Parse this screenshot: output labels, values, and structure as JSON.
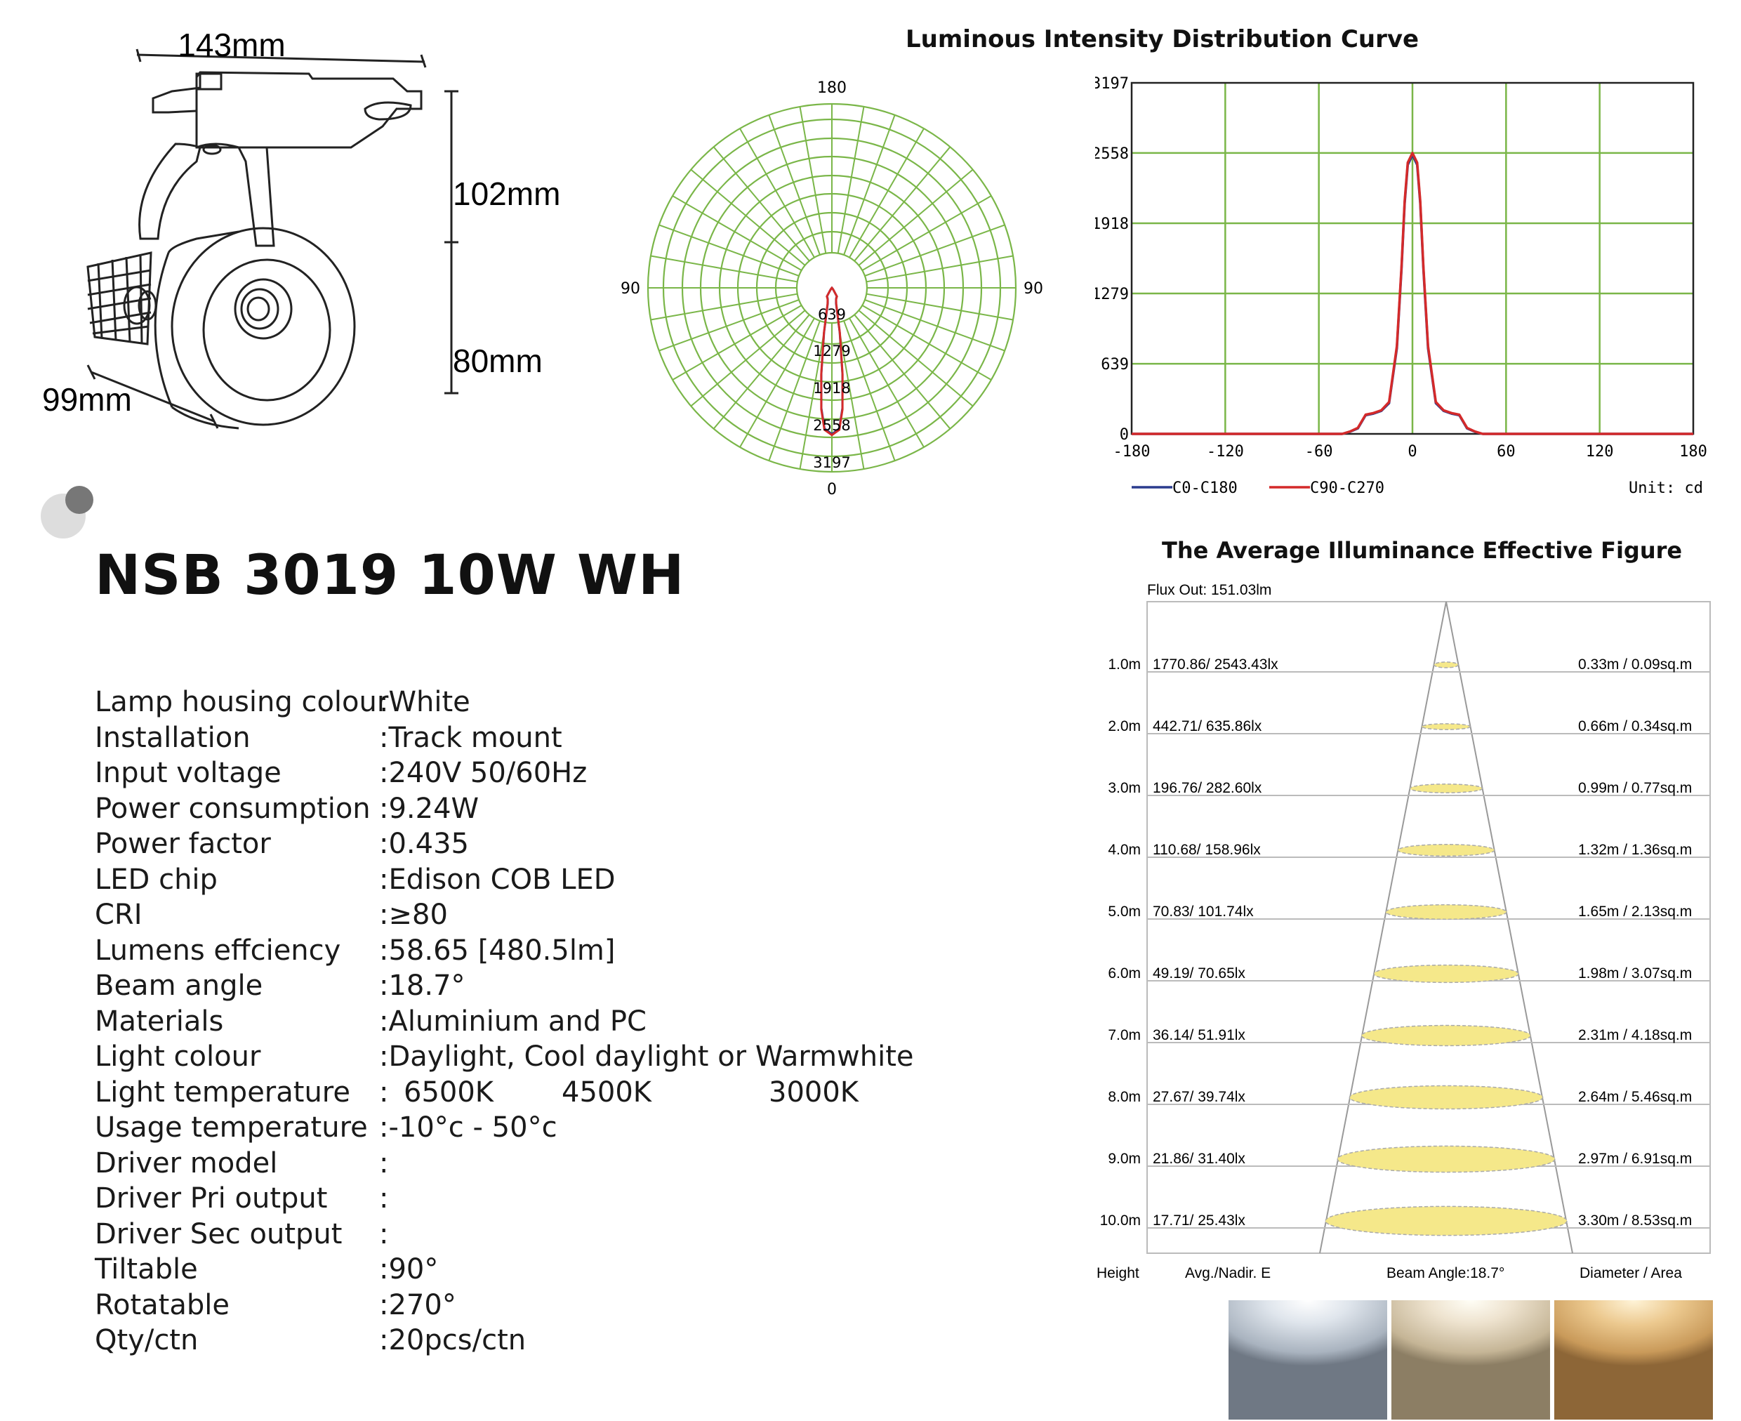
{
  "dimensions": {
    "width": "143mm",
    "height_total": "102mm",
    "height_head": "80mm",
    "depth": "99mm"
  },
  "section_titles": {
    "curve": "Luminous Intensity Distribution Curve",
    "illuminance": "The Average Illuminance Effective Figure"
  },
  "polar": {
    "top_label": "180",
    "left_label": "90",
    "right_label": "90",
    "bottom_label": "0",
    "ring_labels": [
      "639",
      "1279",
      "1918",
      "2558",
      "3197"
    ]
  },
  "chart_data": {
    "type": "line",
    "title": "",
    "xlabel": "",
    "ylabel": "",
    "x_ticks": [
      "-180",
      "-120",
      "-60",
      "0",
      "60",
      "120",
      "180"
    ],
    "y_ticks": [
      "0",
      "639",
      "1279",
      "1918",
      "2558",
      "3197"
    ],
    "xlim": [
      -180,
      180
    ],
    "ylim": [
      0,
      3197
    ],
    "grid": true,
    "legend_position": "bottom-left",
    "unit_label": "Unit: cd",
    "x": [
      -180,
      -45,
      -40,
      -35,
      -30,
      -25,
      -20,
      -15,
      -10,
      -7,
      -5,
      -3,
      0,
      3,
      5,
      7,
      10,
      15,
      20,
      25,
      30,
      35,
      40,
      45,
      180
    ],
    "series": [
      {
        "name": "C0-C180",
        "color": "#2b3c8e",
        "values": [
          0,
          0,
          20,
          50,
          170,
          185,
          210,
          280,
          780,
          1500,
          2100,
          2450,
          2540,
          2450,
          2100,
          1500,
          780,
          280,
          210,
          185,
          170,
          50,
          20,
          0,
          0
        ]
      },
      {
        "name": "C90-C270",
        "color": "#d42a2a",
        "values": [
          0,
          0,
          22,
          55,
          175,
          190,
          215,
          290,
          800,
          1520,
          2120,
          2470,
          2558,
          2470,
          2120,
          1520,
          800,
          290,
          215,
          190,
          175,
          55,
          22,
          0,
          0
        ]
      }
    ]
  },
  "product": {
    "title": "NSB 3019 10W WH"
  },
  "specs": [
    {
      "label": "Lamp housing colour",
      "value": ":White"
    },
    {
      "label": "Installation",
      "value": ":Track mount"
    },
    {
      "label": "Input voltage",
      "value": ":240V 50/60Hz"
    },
    {
      "label": "Power consumption",
      "value": ":9.24W"
    },
    {
      "label": "Power factor",
      "value": ":0.435"
    },
    {
      "label": "LED chip",
      "value": ":Edison COB LED"
    },
    {
      "label": "CRI",
      "value": ":≥80"
    },
    {
      "label": "Lumens effciency",
      "value": ":58.65 [480.5lm]"
    },
    {
      "label": "Beam angle",
      "value": ":18.7°"
    },
    {
      "label": "Materials",
      "value": ":Aluminium and PC"
    },
    {
      "label": "Light colour",
      "value": ":Daylight, Cool daylight or Warmwhite"
    },
    {
      "label": "Light temperature",
      "value": ":"
    },
    {
      "label": "Usage temperature",
      "value": ":-10°c - 50°c"
    },
    {
      "label": "Driver model",
      "value": ":"
    },
    {
      "label": "Driver Pri output",
      "value": ":"
    },
    {
      "label": "Driver Sec output",
      "value": ":"
    },
    {
      "label": "Tiltable",
      "value": ":90°"
    },
    {
      "label": "Rotatable",
      "value": ":270°"
    },
    {
      "label": "Qty/ctn",
      "value": ":20pcs/ctn"
    }
  ],
  "light_temperatures": [
    "6500K",
    "4500K",
    "3000K"
  ],
  "illuminance": {
    "flux": "Flux Out: 151.03lm",
    "rows": [
      {
        "height": "1.0m",
        "avg": "1770.86/ 2543.43lx",
        "diameter": "0.33m / 0.09sq.m"
      },
      {
        "height": "2.0m",
        "avg": "442.71/ 635.86lx",
        "diameter": "0.66m / 0.34sq.m"
      },
      {
        "height": "3.0m",
        "avg": "196.76/ 282.60lx",
        "diameter": "0.99m / 0.77sq.m"
      },
      {
        "height": "4.0m",
        "avg": "110.68/ 158.96lx",
        "diameter": "1.32m / 1.36sq.m"
      },
      {
        "height": "5.0m",
        "avg": "70.83/ 101.74lx",
        "diameter": "1.65m / 2.13sq.m"
      },
      {
        "height": "6.0m",
        "avg": "49.19/ 70.65lx",
        "diameter": "1.98m / 3.07sq.m"
      },
      {
        "height": "7.0m",
        "avg": "36.14/ 51.91lx",
        "diameter": "2.31m / 4.18sq.m"
      },
      {
        "height": "8.0m",
        "avg": "27.67/ 39.74lx",
        "diameter": "2.64m / 5.46sq.m"
      },
      {
        "height": "9.0m",
        "avg": "21.86/ 31.40lx",
        "diameter": "2.97m / 6.91sq.m"
      },
      {
        "height": "10.0m",
        "avg": "17.71/ 25.43lx",
        "diameter": "3.30m / 8.53sq.m"
      }
    ],
    "footer": {
      "height": "Height",
      "avg": "Avg./Nadir. E",
      "beam": "Beam Angle:18.7°",
      "diameter": "Diameter / Area"
    }
  },
  "colors": {
    "grid_green": "#7ab648",
    "ellipse_fill": "#f5e88a",
    "daylight": "#cfd6df",
    "cool_daylight": "#e8dcc6",
    "warm_white": "#e9c48d"
  }
}
